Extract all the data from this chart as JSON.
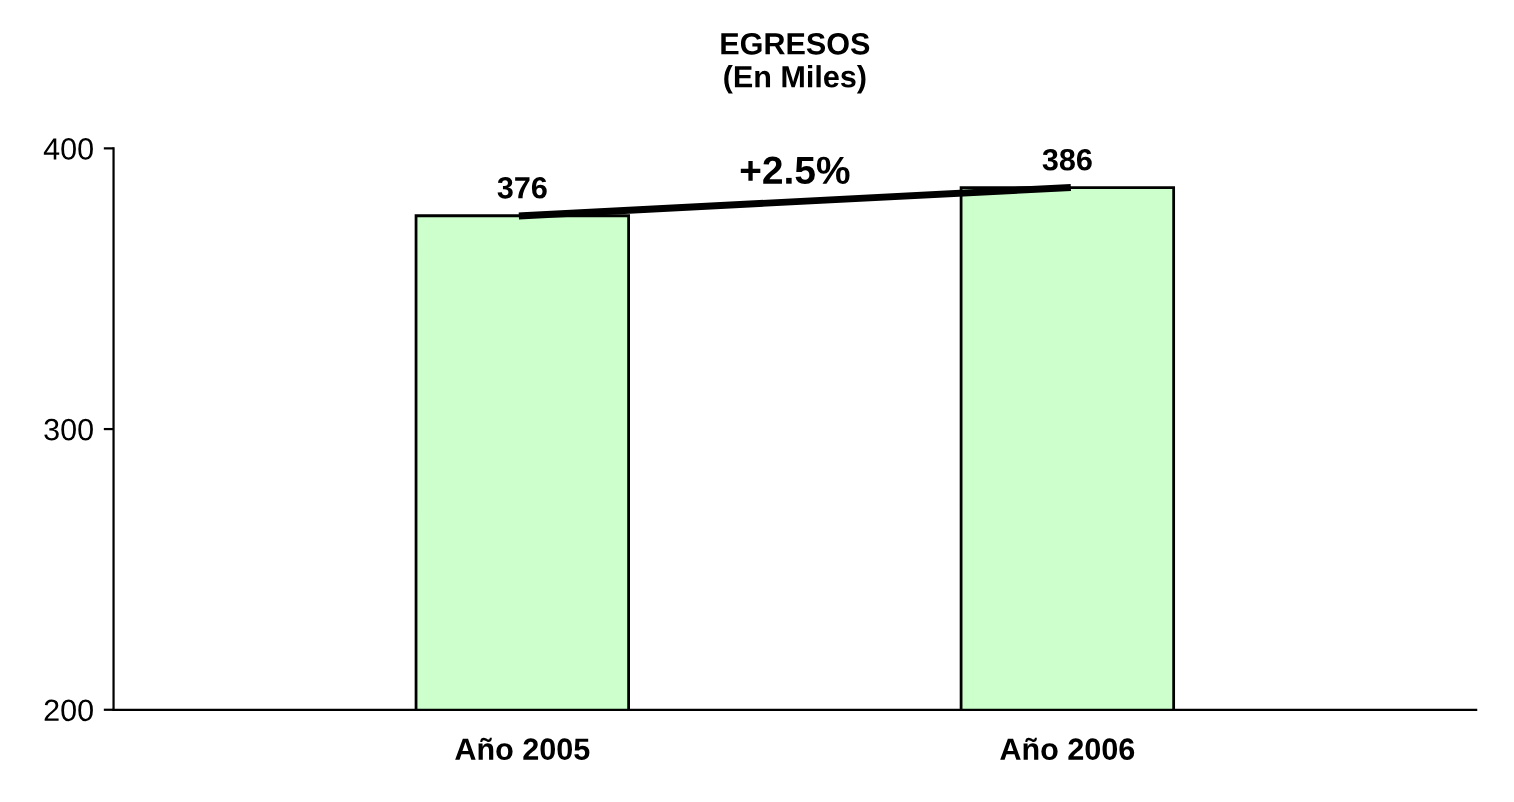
{
  "chart_data": {
    "type": "bar",
    "title": "EGRESOS\n(En Miles)",
    "categories": [
      "Año 2005",
      "Año 2006"
    ],
    "series": [
      {
        "color": "#ccffcc",
        "values": [
          376,
          386
        ],
        "value_labels": [
          "376",
          "386"
        ]
      },
      {
        "type": "line",
        "color": "#000000",
        "values": [
          376,
          386
        ]
      }
    ],
    "ylim": [
      200,
      400
    ],
    "yticks": [
      200,
      300,
      400
    ],
    "grid": false,
    "legend": false,
    "marker": "none",
    "line_style": "solid",
    "annotations": [
      "+2.5%"
    ]
  }
}
